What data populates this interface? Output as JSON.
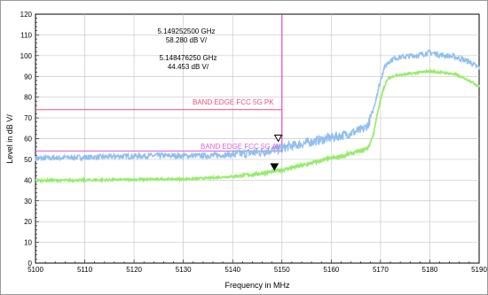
{
  "chart_data": {
    "type": "line",
    "xlabel": "Frequency in MHz",
    "ylabel": "Level in dB V/",
    "xlim": [
      5100,
      5190
    ],
    "ylim": [
      0,
      120
    ],
    "x_ticks": [
      5100,
      5110,
      5120,
      5130,
      5140,
      5150,
      5160,
      5170,
      5180,
      5190
    ],
    "y_ticks": [
      0,
      10,
      20,
      30,
      40,
      50,
      60,
      70,
      80,
      90,
      100,
      110,
      120
    ],
    "grid": true,
    "series": [
      {
        "name": "",
        "color": "#8fbff0",
        "x": [
          5100,
          5105,
          5110,
          5115,
          5120,
          5125,
          5130,
          5135,
          5140,
          5145,
          5148,
          5150,
          5152,
          5155,
          5158,
          5160,
          5162,
          5165,
          5166.5,
          5167.5,
          5168.5,
          5169.5,
          5170.5,
          5171.5,
          5173,
          5175,
          5178,
          5180,
          5182,
          5185,
          5188,
          5190
        ],
        "y": [
          50.5,
          50.8,
          51.0,
          51.3,
          51.6,
          51.8,
          51.7,
          51.8,
          52.3,
          53.5,
          54.5,
          55.5,
          56.5,
          58.0,
          59.5,
          60.5,
          61.5,
          63.5,
          64.5,
          67.0,
          74.0,
          84.0,
          93.0,
          97.0,
          99.0,
          99.5,
          100.5,
          101.5,
          100.5,
          99.5,
          97.0,
          94.0
        ]
      },
      {
        "name": "",
        "color": "#94ec69",
        "x": [
          5100,
          5105,
          5110,
          5115,
          5120,
          5125,
          5130,
          5135,
          5140,
          5145,
          5148,
          5150,
          5152,
          5155,
          5158,
          5160,
          5162,
          5165,
          5166.5,
          5167.5,
          5168.5,
          5169.5,
          5170.5,
          5171.5,
          5173,
          5175,
          5178,
          5180,
          5182,
          5185,
          5188,
          5190
        ],
        "y": [
          39.8,
          39.9,
          40.0,
          40.1,
          40.3,
          40.5,
          40.5,
          41.0,
          41.8,
          43.0,
          44.0,
          45.0,
          46.0,
          47.5,
          49.5,
          50.5,
          51.5,
          53.5,
          54.5,
          56.0,
          62.0,
          74.0,
          84.0,
          89.0,
          90.5,
          91.0,
          92.0,
          92.5,
          92.0,
          91.0,
          88.0,
          85.0
        ]
      }
    ],
    "limit_lines": [
      {
        "label": "BAND EDGE  FCC 5G PK",
        "value": 74,
        "color": "#e8507a"
      },
      {
        "label": "BAND EDGE  FCC 5G AV",
        "value": 54,
        "color": "#e060d8"
      }
    ],
    "band_edge_line": {
      "x": 5150,
      "color": "#e030c0"
    },
    "markers": [
      {
        "symbol": "∇",
        "x": 5149.2525,
        "y": 58.28,
        "color": "#000000"
      },
      {
        "symbol": "▼",
        "x": 5148.47625,
        "y": 44.453,
        "color": "#000000"
      }
    ],
    "marker_readouts": [
      {
        "frequency": "5.149252500 GHz",
        "level": "58.280 dB   V/"
      },
      {
        "frequency": "5.148476250 GHz",
        "level": "44.453 dB   V/"
      }
    ]
  }
}
